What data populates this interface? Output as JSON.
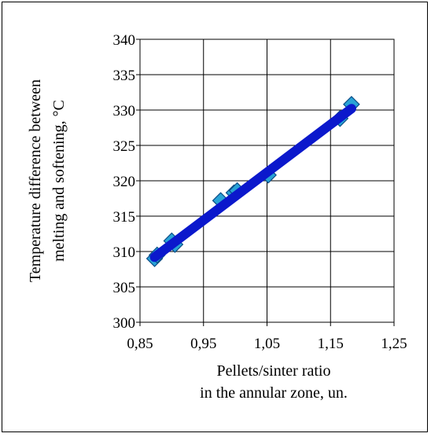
{
  "chart_data": {
    "type": "scatter",
    "title": "",
    "xlabel": [
      "Pellets/sinter ratio",
      "in the annular zone, un."
    ],
    "ylabel": [
      "Temperature difference between",
      "melting and softening, °C"
    ],
    "xlim": [
      0.85,
      1.25
    ],
    "ylim": [
      300,
      340
    ],
    "x_ticks": [
      "0,85",
      "0,95",
      "1,05",
      "1,15",
      "1,25"
    ],
    "y_ticks": [
      "300",
      "305",
      "310",
      "315",
      "320",
      "325",
      "330",
      "335",
      "340"
    ],
    "grid": true,
    "series": [
      {
        "marker": "diamond",
        "color": "#29A3D6",
        "x": [
          0.873,
          0.877,
          0.9,
          0.905,
          0.977,
          0.998,
          1.003,
          1.052,
          1.165,
          1.183
        ],
        "y": [
          309.0,
          309.5,
          311.5,
          311.0,
          317.2,
          318.3,
          318.6,
          320.8,
          328.8,
          330.8
        ]
      },
      {
        "type": "line",
        "color": "#0B18CC",
        "x": [
          0.873,
          1.183
        ],
        "y": [
          309.2,
          330.2
        ]
      }
    ]
  }
}
